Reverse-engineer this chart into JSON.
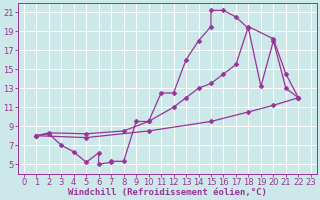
{
  "xlabel": "Windchill (Refroidissement éolien,°C)",
  "bg_color": "#cce8e8",
  "grid_color": "#b8d8d8",
  "line_color": "#993399",
  "xlim": [
    -0.5,
    23.5
  ],
  "ylim": [
    4,
    22
  ],
  "xticks": [
    0,
    1,
    2,
    3,
    4,
    5,
    6,
    7,
    8,
    9,
    10,
    11,
    12,
    13,
    14,
    15,
    16,
    17,
    18,
    19,
    20,
    21,
    22,
    23
  ],
  "yticks": [
    5,
    7,
    9,
    11,
    13,
    15,
    17,
    19,
    21
  ],
  "curve1_x": [
    1,
    2,
    3,
    4,
    5,
    6,
    6,
    7,
    7,
    8,
    9,
    10,
    11,
    12,
    13,
    14,
    15,
    15,
    16,
    17,
    18,
    19,
    20,
    21,
    22
  ],
  "curve1_y": [
    8.0,
    8.2,
    7.0,
    6.3,
    5.2,
    6.2,
    5.0,
    5.2,
    5.3,
    5.3,
    9.5,
    9.5,
    12.5,
    12.5,
    16.0,
    18.0,
    19.5,
    21.2,
    21.2,
    20.5,
    19.3,
    13.2,
    18.0,
    13.0,
    12.0
  ],
  "curve2_x": [
    1,
    2,
    5,
    8,
    10,
    12,
    13,
    14,
    15,
    16,
    17,
    18,
    20,
    21,
    22
  ],
  "curve2_y": [
    8.0,
    8.3,
    8.2,
    8.5,
    9.5,
    11.0,
    12.0,
    13.0,
    13.5,
    14.5,
    15.5,
    19.5,
    18.2,
    14.5,
    12.0
  ],
  "curve3_x": [
    1,
    5,
    10,
    15,
    18,
    20,
    22
  ],
  "curve3_y": [
    8.0,
    7.8,
    8.5,
    9.5,
    10.5,
    11.2,
    12.0
  ],
  "tick_fontsize": 6,
  "label_fontsize": 6.5
}
